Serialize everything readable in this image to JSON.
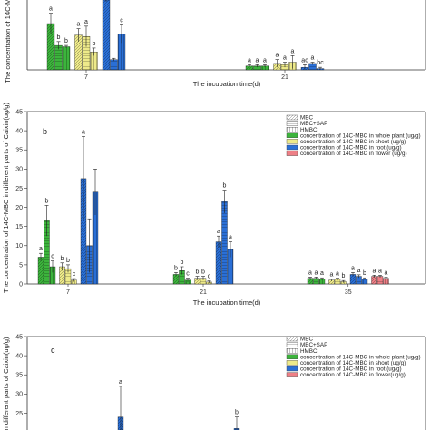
{
  "colors": {
    "whole_plant": "#3cb43c",
    "shoot": "#eeea8a",
    "root": "#2a6fd6",
    "flower": "#ee7f86"
  },
  "chart_data": [
    {
      "panel_id": "a",
      "type": "bar",
      "ylabel": "The concentration of 14C-MBC",
      "xlabel": "The incubation time(d)",
      "categories": [
        "7",
        "21"
      ],
      "ylim": [
        0,
        60
      ],
      "series": [
        {
          "organ": "whole_plant",
          "pattern": "diag",
          "values": [
            36,
            3
          ],
          "errors": [
            8,
            1
          ],
          "labels": [
            "a",
            "a"
          ]
        },
        {
          "organ": "whole_plant",
          "pattern": "hatch",
          "values": [
            19,
            3
          ],
          "errors": [
            3,
            1
          ],
          "labels": [
            "b",
            "a"
          ]
        },
        {
          "organ": "whole_plant",
          "pattern": "vline",
          "values": [
            18,
            3
          ],
          "errors": [
            1,
            1
          ],
          "labels": [
            "b",
            "a"
          ]
        },
        {
          "organ": "shoot",
          "pattern": "diag",
          "values": [
            27,
            5
          ],
          "errors": [
            5,
            3
          ],
          "labels": [
            "a",
            "a"
          ]
        },
        {
          "organ": "shoot",
          "pattern": "hatch",
          "values": [
            26,
            4
          ],
          "errors": [
            8,
            2
          ],
          "labels": [
            "a",
            "a"
          ]
        },
        {
          "organ": "shoot",
          "pattern": "vline",
          "values": [
            14,
            6
          ],
          "errors": [
            3,
            5
          ],
          "labels": [
            "b",
            "a"
          ]
        },
        {
          "organ": "root",
          "pattern": "diag",
          "values": [
            58,
            2
          ],
          "errors": [
            5,
            2
          ],
          "labels": [
            "",
            "ac"
          ]
        },
        {
          "organ": "root",
          "pattern": "hatch",
          "values": [
            8,
            5
          ],
          "errors": [
            1,
            1
          ],
          "labels": [
            "",
            "a"
          ]
        },
        {
          "organ": "root",
          "pattern": "vline",
          "values": [
            28,
            1
          ],
          "errors": [
            7,
            1
          ],
          "labels": [
            "c",
            "bc"
          ]
        }
      ]
    },
    {
      "panel_id": "b",
      "type": "bar",
      "ylabel": "The concentration of 14C-MBC in different parts of Caixin(ug/g)",
      "xlabel": "The incubation time(d)",
      "categories": [
        "7",
        "21",
        "35"
      ],
      "ylim": [
        0,
        45
      ],
      "yticks": [
        0,
        5,
        10,
        15,
        20,
        25,
        30,
        35,
        40,
        45
      ],
      "series": [
        {
          "organ": "whole_plant",
          "pattern": "diag",
          "values": [
            7,
            2.5,
            1.5
          ],
          "errors": [
            1,
            0.5,
            0.3
          ],
          "labels": [
            "a",
            "b",
            "a"
          ]
        },
        {
          "organ": "whole_plant",
          "pattern": "hatch",
          "values": [
            16.5,
            3.5,
            1.5
          ],
          "errors": [
            4,
            1,
            0.3
          ],
          "labels": [
            "b",
            "b",
            "a"
          ]
        },
        {
          "organ": "whole_plant",
          "pattern": "vline",
          "values": [
            4.5,
            1,
            1.3
          ],
          "errors": [
            1.5,
            0.5,
            0.3
          ],
          "labels": [
            "c",
            "c",
            "a"
          ]
        },
        {
          "organ": "shoot",
          "pattern": "diag",
          "values": [
            4.5,
            1.5,
            1
          ],
          "errors": [
            1,
            0.5,
            0.3
          ],
          "labels": [
            "b",
            "b",
            "a"
          ]
        },
        {
          "organ": "shoot",
          "pattern": "hatch",
          "values": [
            4,
            1.5,
            1.2
          ],
          "errors": [
            1,
            0.5,
            0.3
          ],
          "labels": [
            "b",
            "b",
            "a"
          ]
        },
        {
          "organ": "shoot",
          "pattern": "vline",
          "values": [
            1,
            0.5,
            0.6
          ],
          "errors": [
            0.4,
            0.3,
            0.3
          ],
          "labels": [
            "c",
            "c",
            "b"
          ]
        },
        {
          "organ": "root",
          "pattern": "diag",
          "values": [
            27.5,
            11,
            2.5
          ],
          "errors": [
            11,
            1.5,
            0.5
          ],
          "labels": [
            "a",
            "a",
            "a"
          ]
        },
        {
          "organ": "root",
          "pattern": "hatch",
          "values": [
            10,
            21.5,
            2
          ],
          "errors": [
            7,
            3,
            0.4
          ],
          "labels": [
            "",
            "b",
            "a"
          ]
        },
        {
          "organ": "root",
          "pattern": "vline",
          "values": [
            24,
            9,
            1.3
          ],
          "errors": [
            6,
            2,
            0.3
          ],
          "labels": [
            "",
            "a",
            "b"
          ]
        },
        {
          "organ": "flower",
          "pattern": "diag",
          "values": [
            null,
            null,
            2
          ],
          "errors": [
            null,
            null,
            0.3
          ],
          "labels": [
            "",
            "",
            "a"
          ]
        },
        {
          "organ": "flower",
          "pattern": "hatch",
          "values": [
            null,
            null,
            2
          ],
          "errors": [
            null,
            null,
            0.3
          ],
          "labels": [
            "",
            "",
            "a"
          ]
        },
        {
          "organ": "flower",
          "pattern": "vline",
          "values": [
            null,
            null,
            1.5
          ],
          "errors": [
            null,
            null,
            0.3
          ],
          "labels": [
            "",
            "",
            "a"
          ]
        }
      ],
      "legend": {
        "placement": "top-right",
        "patterns": [
          "MBC",
          "MBC+SAP",
          "HMBC"
        ],
        "organs": [
          {
            "organ": "whole_plant",
            "label": "concentration of 14C-MBC in whole plant (ug/g)"
          },
          {
            "organ": "shoot",
            "label": "concentration of 14C-MBC in shoot (ug/g)"
          },
          {
            "organ": "root",
            "label": "concentration of 14C-MBC in root (ug/g)"
          },
          {
            "organ": "flower",
            "label": "concentration of 14C-MBC in flower (ug/g)"
          }
        ]
      }
    },
    {
      "panel_id": "c",
      "type": "bar",
      "ylabel": "BC in different parts of Caixin(ug/g)",
      "categories": [
        "7",
        "21"
      ],
      "ylim": [
        0,
        45
      ],
      "yticks": [
        20,
        25,
        30,
        35,
        40,
        45
      ],
      "series": [
        {
          "organ": "root",
          "pattern": "diag",
          "values": [
            24,
            null
          ],
          "errors": [
            8,
            null
          ],
          "labels": [
            "a",
            ""
          ]
        },
        {
          "organ": "root",
          "pattern": "vline",
          "values": [
            29,
            21
          ],
          "errors": [
            4,
            3
          ],
          "labels": [
            "bc",
            "b"
          ]
        }
      ],
      "legend": {
        "placement": "top-right",
        "patterns": [
          "MBC",
          "MBC+SAP",
          "HMBC"
        ],
        "organs": [
          {
            "organ": "whole_plant",
            "label": "concentration of 14C-MBC in whole plant (ug/g)"
          },
          {
            "organ": "shoot",
            "label": "concentration of 14C-MBC in shoot (ug/g)"
          },
          {
            "organ": "root",
            "label": "concentration of 14C-MBC in root (ug/g)"
          },
          {
            "organ": "flower",
            "label": "concentration of 14C-MBC in flower(ug/g)"
          }
        ]
      }
    }
  ]
}
